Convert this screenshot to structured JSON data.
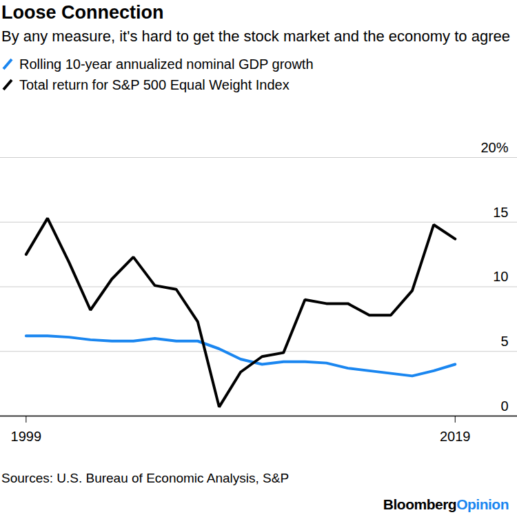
{
  "chart_data": {
    "type": "line",
    "title": "Loose Connection",
    "subtitle": "By any measure, it's hard to get the stock market and the economy to agree",
    "source": "Sources: U.S. Bureau of Economic Analysis, S&P",
    "brand": {
      "name": "Bloomberg",
      "suffix": "Opinion",
      "suffix_color": "#1a86f0"
    },
    "x": [
      1999,
      2000,
      2001,
      2002,
      2003,
      2004,
      2005,
      2006,
      2007,
      2008,
      2009,
      2010,
      2011,
      2012,
      2013,
      2014,
      2015,
      2016,
      2017,
      2018,
      2019
    ],
    "series": [
      {
        "name": "Rolling 10-year annualized nominal GDP growth",
        "color": "#1a86f0",
        "values": [
          6.2,
          6.2,
          6.1,
          5.9,
          5.8,
          5.8,
          6.0,
          5.8,
          5.8,
          5.2,
          4.4,
          4.0,
          4.2,
          4.2,
          4.1,
          3.7,
          3.5,
          3.3,
          3.1,
          3.5,
          4.0
        ]
      },
      {
        "name": "Total return for S&P 500 Equal Weight Index",
        "color": "#000000",
        "values": [
          12.5,
          15.3,
          11.9,
          8.2,
          10.6,
          12.3,
          10.1,
          9.8,
          7.3,
          0.7,
          3.4,
          4.6,
          4.9,
          9.0,
          8.7,
          8.7,
          7.8,
          7.8,
          9.7,
          14.8,
          13.7
        ]
      }
    ],
    "xlim": [
      1997.8,
      2021.9
    ],
    "xticks": [
      1999,
      2019
    ],
    "ylim": [
      0,
      20
    ],
    "yticks": [
      0,
      5,
      10,
      15,
      {
        "value": 20,
        "label": "20%"
      }
    ],
    "grid": true,
    "legend": "top-left"
  }
}
